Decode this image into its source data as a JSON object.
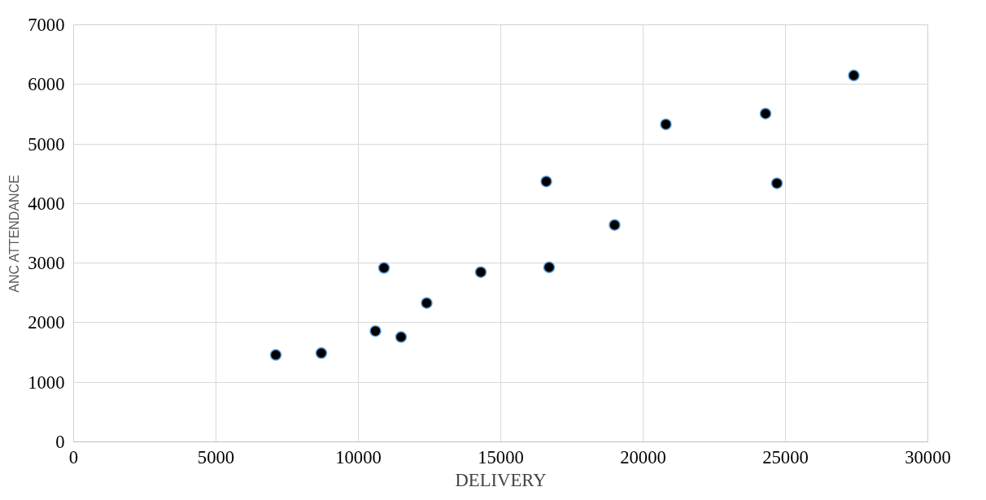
{
  "chart_data": {
    "type": "scatter",
    "xlabel": "DELIVERY",
    "ylabel": "ANC ATTENDANCE",
    "x": [
      7100,
      8700,
      10600,
      10900,
      11500,
      12400,
      14300,
      16600,
      16700,
      19000,
      20800,
      24300,
      24700,
      27400
    ],
    "series": [
      {
        "color": "#000000",
        "values": [
          1460,
          1490,
          1860,
          2920,
          1760,
          2330,
          2850,
          4370,
          2930,
          3640,
          5330,
          5510,
          4340,
          6150
        ]
      }
    ],
    "xlim": [
      0,
      30000
    ],
    "xticks": [
      0,
      5000,
      10000,
      15000,
      20000,
      25000,
      30000
    ],
    "ylim": [
      0,
      7000
    ],
    "yticks": [
      0,
      1000,
      2000,
      3000,
      4000,
      5000,
      6000,
      7000
    ],
    "grid": true,
    "marker": "circle"
  }
}
